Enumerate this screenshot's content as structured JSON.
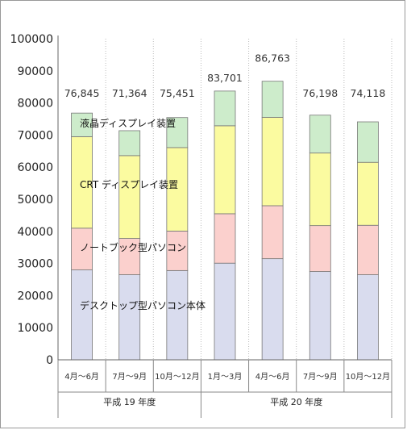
{
  "chart_data": {
    "type": "bar",
    "stacked": true,
    "categories": [
      "4月〜6月",
      "7月〜9月",
      "10月〜12月",
      "1月〜3月",
      "4月〜6月",
      "7月〜9月",
      "10月〜12月"
    ],
    "groups": [
      {
        "label": "平成 19 年度",
        "categories": [
          0,
          1,
          2
        ]
      },
      {
        "label": "平成 20 年度",
        "categories": [
          3,
          4,
          5,
          6
        ]
      }
    ],
    "series": [
      {
        "name": "デスクトップ型パソコン本体",
        "color": "#d9dcee",
        "values": [
          28000,
          26500,
          27800,
          30100,
          31500,
          27500,
          26500
        ]
      },
      {
        "name": "ノートブック型パソコン",
        "color": "#fbd0cd",
        "values": [
          13000,
          11300,
          12300,
          15400,
          16500,
          14300,
          15400
        ]
      },
      {
        "name": "CRT ディスプレイ装置",
        "color": "#fbfba0",
        "values": [
          28500,
          25800,
          26000,
          27400,
          27500,
          22600,
          19600
        ]
      },
      {
        "name": "液晶ディスプレイ装置",
        "color": "#cdeccb",
        "values": [
          7345,
          7764,
          9351,
          10801,
          11263,
          11798,
          12618
        ]
      }
    ],
    "totals": [
      "76,845",
      "71,364",
      "75,451",
      "83,701",
      "86,763",
      "76,198",
      "74,118"
    ],
    "yticks": [
      "0",
      "10000",
      "20000",
      "30000",
      "40000",
      "50000",
      "60000",
      "70000",
      "80000",
      "90000",
      "100000"
    ],
    "ylim": [
      0,
      100000
    ],
    "grid": true,
    "title": "",
    "xlabel": "",
    "ylabel": ""
  }
}
